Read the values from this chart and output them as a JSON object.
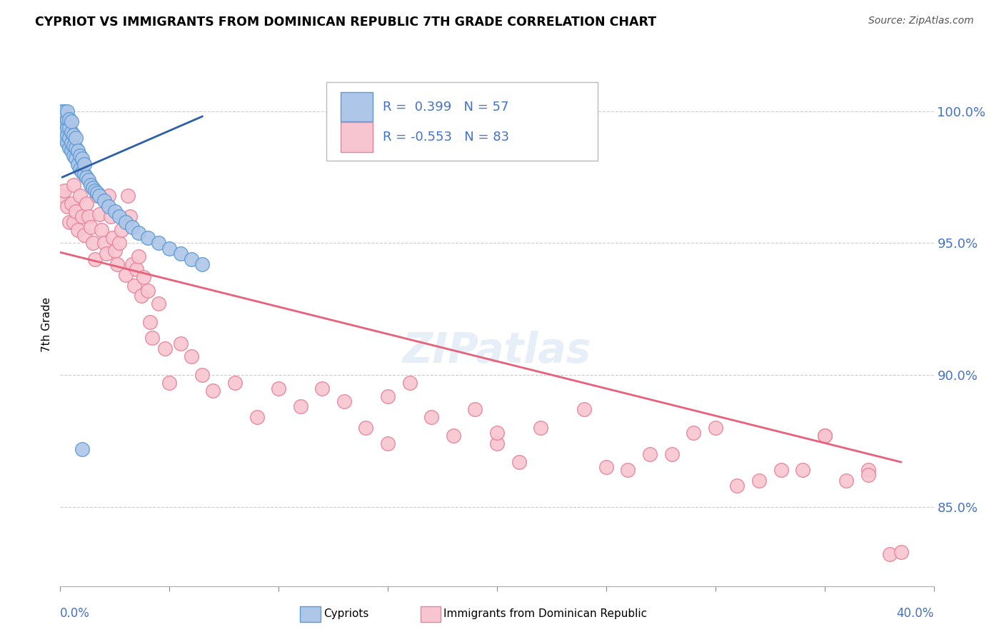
{
  "title": "CYPRIOT VS IMMIGRANTS FROM DOMINICAN REPUBLIC 7TH GRADE CORRELATION CHART",
  "source": "Source: ZipAtlas.com",
  "ylabel": "7th Grade",
  "y_ticks": [
    0.85,
    0.9,
    0.95,
    1.0
  ],
  "y_tick_labels": [
    "85.0%",
    "90.0%",
    "95.0%",
    "100.0%"
  ],
  "xlim": [
    0.0,
    0.4
  ],
  "ylim": [
    0.82,
    1.018
  ],
  "legend_r1": "R =  0.399",
  "legend_n1": "N = 57",
  "legend_r2": "R = -0.553",
  "legend_n2": "N = 83",
  "blue_color": "#aec6e8",
  "blue_edge": "#5b9bd5",
  "pink_color": "#f7c5d0",
  "pink_edge": "#e8829a",
  "blue_line_color": "#2b5faa",
  "pink_line_color": "#e8607a",
  "grid_color": "#cccccc",
  "axis_label_color": "#4472c4",
  "blue_points_x": [
    0.001,
    0.001,
    0.001,
    0.001,
    0.002,
    0.002,
    0.002,
    0.002,
    0.002,
    0.003,
    0.003,
    0.003,
    0.003,
    0.003,
    0.004,
    0.004,
    0.004,
    0.004,
    0.005,
    0.005,
    0.005,
    0.005,
    0.006,
    0.006,
    0.006,
    0.007,
    0.007,
    0.007,
    0.008,
    0.008,
    0.009,
    0.009,
    0.01,
    0.01,
    0.011,
    0.011,
    0.012,
    0.013,
    0.014,
    0.015,
    0.016,
    0.017,
    0.018,
    0.02,
    0.022,
    0.025,
    0.027,
    0.03,
    0.033,
    0.036,
    0.04,
    0.045,
    0.05,
    0.055,
    0.06,
    0.065,
    0.01
  ],
  "blue_points_y": [
    0.99,
    0.995,
    0.998,
    1.0,
    0.99,
    0.993,
    0.996,
    0.998,
    1.0,
    0.988,
    0.991,
    0.994,
    0.997,
    1.0,
    0.986,
    0.99,
    0.994,
    0.997,
    0.985,
    0.988,
    0.992,
    0.996,
    0.983,
    0.987,
    0.991,
    0.982,
    0.986,
    0.99,
    0.98,
    0.985,
    0.978,
    0.983,
    0.977,
    0.982,
    0.976,
    0.98,
    0.975,
    0.974,
    0.972,
    0.971,
    0.97,
    0.969,
    0.968,
    0.966,
    0.964,
    0.962,
    0.96,
    0.958,
    0.956,
    0.954,
    0.952,
    0.95,
    0.948,
    0.946,
    0.944,
    0.942,
    0.872
  ],
  "pink_points_x": [
    0.001,
    0.002,
    0.003,
    0.004,
    0.005,
    0.006,
    0.006,
    0.007,
    0.008,
    0.009,
    0.01,
    0.011,
    0.012,
    0.013,
    0.014,
    0.015,
    0.016,
    0.017,
    0.018,
    0.019,
    0.02,
    0.021,
    0.022,
    0.023,
    0.024,
    0.025,
    0.026,
    0.027,
    0.028,
    0.03,
    0.031,
    0.032,
    0.033,
    0.034,
    0.035,
    0.036,
    0.037,
    0.038,
    0.04,
    0.041,
    0.042,
    0.045,
    0.048,
    0.05,
    0.055,
    0.06,
    0.065,
    0.07,
    0.08,
    0.09,
    0.1,
    0.11,
    0.12,
    0.13,
    0.14,
    0.15,
    0.16,
    0.17,
    0.18,
    0.19,
    0.2,
    0.21,
    0.22,
    0.24,
    0.26,
    0.28,
    0.3,
    0.32,
    0.34,
    0.35,
    0.36,
    0.37,
    0.38,
    0.15,
    0.2,
    0.25,
    0.27,
    0.29,
    0.31,
    0.33,
    0.35,
    0.37,
    0.385
  ],
  "pink_points_y": [
    0.968,
    0.97,
    0.964,
    0.958,
    0.965,
    0.972,
    0.958,
    0.962,
    0.955,
    0.968,
    0.96,
    0.953,
    0.965,
    0.96,
    0.956,
    0.95,
    0.944,
    0.968,
    0.961,
    0.955,
    0.95,
    0.946,
    0.968,
    0.96,
    0.952,
    0.947,
    0.942,
    0.95,
    0.955,
    0.938,
    0.968,
    0.96,
    0.942,
    0.934,
    0.94,
    0.945,
    0.93,
    0.937,
    0.932,
    0.92,
    0.914,
    0.927,
    0.91,
    0.897,
    0.912,
    0.907,
    0.9,
    0.894,
    0.897,
    0.884,
    0.895,
    0.888,
    0.895,
    0.89,
    0.88,
    0.874,
    0.897,
    0.884,
    0.877,
    0.887,
    0.874,
    0.867,
    0.88,
    0.887,
    0.864,
    0.87,
    0.88,
    0.86,
    0.864,
    0.877,
    0.86,
    0.864,
    0.832,
    0.892,
    0.878,
    0.865,
    0.87,
    0.878,
    0.858,
    0.864,
    0.877,
    0.862,
    0.833
  ],
  "blue_trend_x": [
    0.001,
    0.065
  ],
  "blue_trend_y": [
    0.975,
    0.998
  ],
  "pink_trend_x": [
    0.0,
    0.385
  ],
  "pink_trend_y": [
    0.9465,
    0.867
  ]
}
